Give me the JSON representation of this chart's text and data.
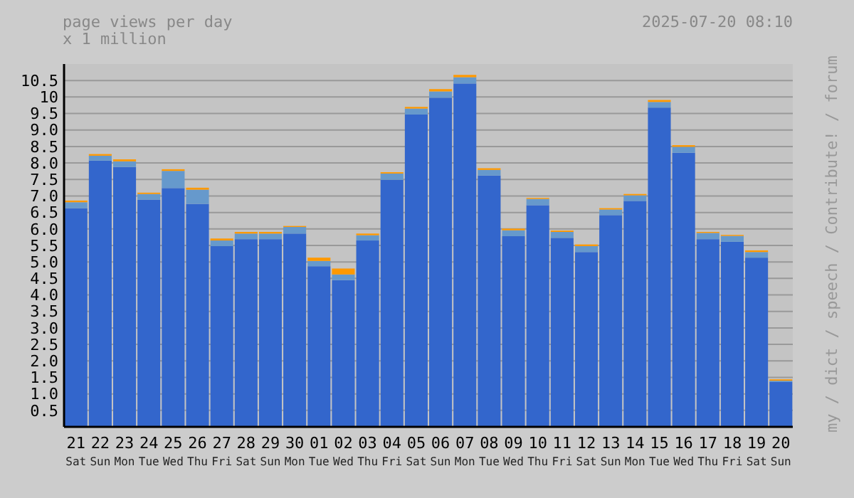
{
  "chart_data": {
    "type": "bar",
    "title": "page views per day",
    "subtitle": "x 1 million",
    "annotations": [
      "2025-07-20 08:10",
      "my / dict / speech / Contribute! / forum"
    ],
    "categories": [
      "21 Sat",
      "22 Sun",
      "23 Mon",
      "24 Tue",
      "25 Wed",
      "26 Thu",
      "27 Fri",
      "28 Sat",
      "29 Sun",
      "30 Mon",
      "01 Tue",
      "02 Wed",
      "03 Thu",
      "04 Fri",
      "05 Sat",
      "06 Sun",
      "07 Mon",
      "08 Tue",
      "09 Wed",
      "10 Thu",
      "11 Fri",
      "12 Sat",
      "13 Sun",
      "14 Mon",
      "15 Tue",
      "16 Wed",
      "17 Thu",
      "18 Fri",
      "19 Sat",
      "20 Sun"
    ],
    "stacked": true,
    "series": [
      {
        "color": "#3366cc",
        "values": [
          6.63,
          8.07,
          7.88,
          6.89,
          7.24,
          6.76,
          5.48,
          5.69,
          5.69,
          5.86,
          4.87,
          4.45,
          5.65,
          7.49,
          9.47,
          9.98,
          10.41,
          7.62,
          5.78,
          6.72,
          5.73,
          5.3,
          6.42,
          6.85,
          9.68,
          8.31,
          5.69,
          5.61,
          5.13,
          1.36
        ]
      },
      {
        "color": "#6699cc",
        "values": [
          0.18,
          0.15,
          0.17,
          0.17,
          0.52,
          0.43,
          0.17,
          0.17,
          0.17,
          0.2,
          0.16,
          0.17,
          0.16,
          0.19,
          0.18,
          0.19,
          0.19,
          0.17,
          0.18,
          0.19,
          0.18,
          0.18,
          0.17,
          0.17,
          0.17,
          0.18,
          0.19,
          0.18,
          0.17,
          0.04
        ]
      },
      {
        "color": "#ff9900",
        "values": [
          0.05,
          0.05,
          0.06,
          0.04,
          0.05,
          0.06,
          0.06,
          0.05,
          0.05,
          0.03,
          0.1,
          0.18,
          0.05,
          0.04,
          0.05,
          0.07,
          0.07,
          0.05,
          0.05,
          0.03,
          0.04,
          0.05,
          0.04,
          0.04,
          0.06,
          0.05,
          0.03,
          0.03,
          0.05,
          0.04
        ]
      }
    ],
    "ylim": [
      0,
      11
    ],
    "yticks": [
      {
        "value": 0.5,
        "label": "0.5"
      },
      {
        "value": 1,
        "label": "1.0"
      },
      {
        "value": 1.5,
        "label": "1.5"
      },
      {
        "value": 2,
        "label": "2.0"
      },
      {
        "value": 2.5,
        "label": "2.5"
      },
      {
        "value": 3,
        "label": "3.0"
      },
      {
        "value": 3.5,
        "label": "3.5"
      },
      {
        "value": 4,
        "label": "4.0"
      },
      {
        "value": 4.5,
        "label": "4.5"
      },
      {
        "value": 5,
        "label": "5.0"
      },
      {
        "value": 5.5,
        "label": "5.5"
      },
      {
        "value": 6,
        "label": "6.0"
      },
      {
        "value": 6.5,
        "label": "6.5"
      },
      {
        "value": 7,
        "label": "7.0"
      },
      {
        "value": 7.5,
        "label": "7.5"
      },
      {
        "value": 8,
        "label": "8.0"
      },
      {
        "value": 8.5,
        "label": "8.5"
      },
      {
        "value": 9,
        "label": "9.0"
      },
      {
        "value": 9.5,
        "label": "9.5"
      },
      10,
      10.5
    ],
    "grid": "y"
  }
}
